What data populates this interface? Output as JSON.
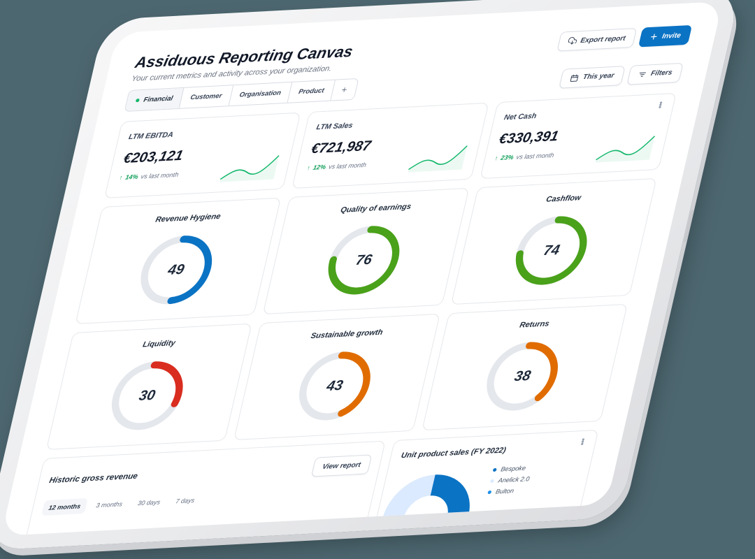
{
  "header": {
    "title": "Assiduous Reporting Canvas",
    "subtitle": "Your current metrics and activity across your organization.",
    "export_label": "Export report",
    "invite_label": "Invite",
    "date_filter_label": "This year",
    "filters_label": "Filters"
  },
  "tabs": [
    {
      "label": "Financial",
      "active": true
    },
    {
      "label": "Customer"
    },
    {
      "label": "Organisation"
    },
    {
      "label": "Product"
    },
    {
      "label": "+"
    }
  ],
  "kpis": [
    {
      "label": "LTM EBITDA",
      "value": "€203,121",
      "delta": "14%",
      "delta_text": "vs last month"
    },
    {
      "label": "LTM Sales",
      "value": "€721,987",
      "delta": "12%",
      "delta_text": "vs last month"
    },
    {
      "label": "Net Cash",
      "value": "€330,391",
      "delta": "23%",
      "delta_text": "vs last month"
    }
  ],
  "gauges": [
    {
      "title": "Revenue Hygiene",
      "value": "49",
      "pct": 49,
      "color": "#0b73c4"
    },
    {
      "title": "Quality of earnings",
      "value": "76",
      "pct": 76,
      "color": "#4aa11a"
    },
    {
      "title": "Cashflow",
      "value": "74",
      "pct": 74,
      "color": "#4aa11a"
    },
    {
      "title": "Liquidity",
      "value": "30",
      "pct": 30,
      "color": "#d92d20"
    },
    {
      "title": "Sustainable growth",
      "value": "43",
      "pct": 43,
      "color": "#e06c00"
    },
    {
      "title": "Returns",
      "value": "38",
      "pct": 38,
      "color": "#e06c00"
    }
  ],
  "history": {
    "title": "Historic gross revenue",
    "view_report_label": "View report",
    "periods": [
      "12 months",
      "3 months",
      "30 days",
      "7 days"
    ],
    "active_period": "12 months"
  },
  "unit_sales": {
    "title": "Unit product sales (FY 2022)",
    "legend": [
      {
        "label": "Bespoke",
        "color": "#0b73c4"
      },
      {
        "label": "Anelick 2.0",
        "color": "#dbeafe"
      },
      {
        "label": "Bulton",
        "color": "#1e90e6"
      }
    ]
  },
  "colors": {
    "accent": "#0b73c4",
    "positive": "#12a05c",
    "track": "#e4e7ec"
  }
}
